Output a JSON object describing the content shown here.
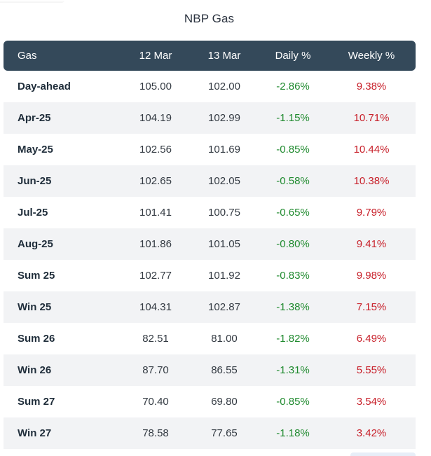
{
  "title": "NBP Gas",
  "columns": [
    "Gas",
    "12 Mar",
    "13 Mar",
    "Daily %",
    "Weekly %"
  ],
  "rows": [
    {
      "name": "Day-ahead",
      "d1": "105.00",
      "d2": "102.00",
      "daily": "-2.86%",
      "weekly": "9.38%"
    },
    {
      "name": "Apr-25",
      "d1": "104.19",
      "d2": "102.99",
      "daily": "-1.15%",
      "weekly": "10.71%"
    },
    {
      "name": "May-25",
      "d1": "102.56",
      "d2": "101.69",
      "daily": "-0.85%",
      "weekly": "10.44%"
    },
    {
      "name": "Jun-25",
      "d1": "102.65",
      "d2": "102.05",
      "daily": "-0.58%",
      "weekly": "10.38%"
    },
    {
      "name": "Jul-25",
      "d1": "101.41",
      "d2": "100.75",
      "daily": "-0.65%",
      "weekly": "9.79%"
    },
    {
      "name": "Aug-25",
      "d1": "101.86",
      "d2": "101.05",
      "daily": "-0.80%",
      "weekly": "9.41%"
    },
    {
      "name": "Sum 25",
      "d1": "102.77",
      "d2": "101.92",
      "daily": "-0.83%",
      "weekly": "9.98%"
    },
    {
      "name": "Win 25",
      "d1": "104.31",
      "d2": "102.87",
      "daily": "-1.38%",
      "weekly": "7.15%"
    },
    {
      "name": "Sum 26",
      "d1": "82.51",
      "d2": "81.00",
      "daily": "-1.82%",
      "weekly": "6.49%"
    },
    {
      "name": "Win 26",
      "d1": "87.70",
      "d2": "86.55",
      "daily": "-1.31%",
      "weekly": "5.55%"
    },
    {
      "name": "Sum 27",
      "d1": "70.40",
      "d2": "69.80",
      "daily": "-0.85%",
      "weekly": "3.54%"
    },
    {
      "name": "Win 27",
      "d1": "78.58",
      "d2": "77.65",
      "daily": "-1.18%",
      "weekly": "3.42%"
    }
  ],
  "colors": {
    "header_bg": "#34495a",
    "row_alt_bg": "#f2f3f5",
    "negative": "#1f8a2e",
    "positive": "#c8202a"
  }
}
